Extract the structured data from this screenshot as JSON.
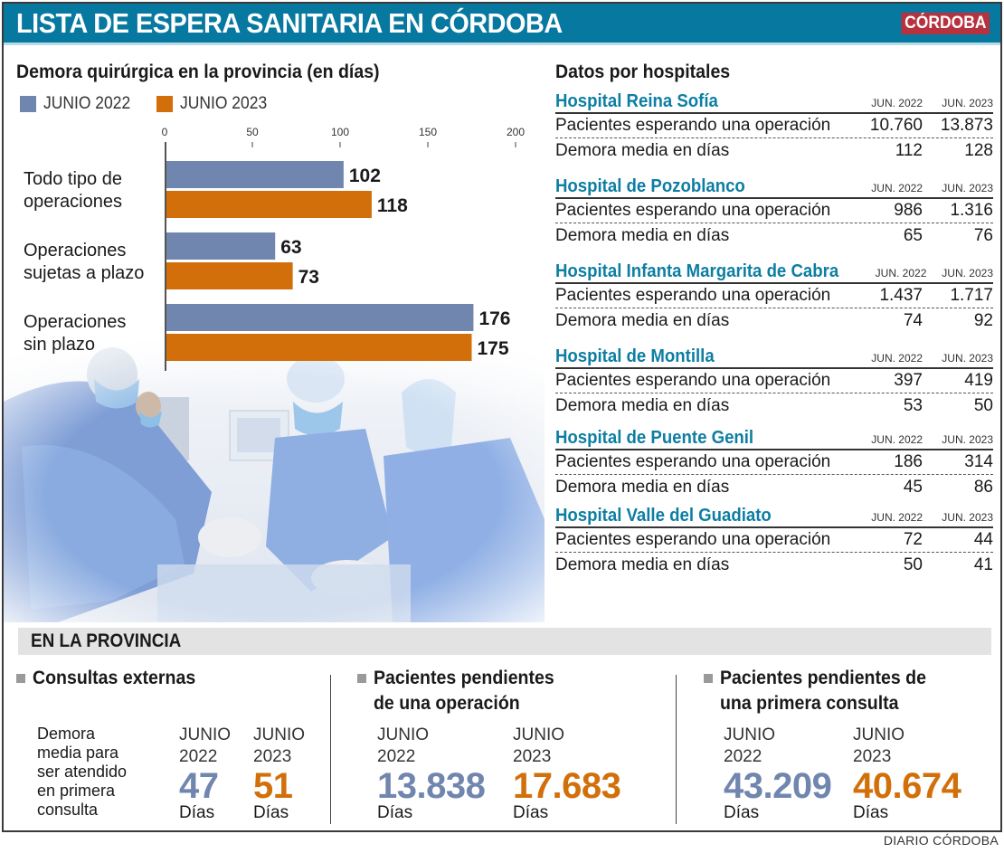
{
  "header": {
    "title": "LISTA DE ESPERA SANITARIA EN CÓRDOBA",
    "brand": "CÓRDOBA"
  },
  "colors": {
    "header_bg": "#07789f",
    "brand_bg": "#b7323f",
    "series_2022": "#7186ae",
    "series_2023": "#d26f0a",
    "hospital_name": "#0d7ea3"
  },
  "chart_data": {
    "type": "bar",
    "orientation": "horizontal",
    "title": "Demora quirúrgica en la provincia (en días)",
    "xlabel": "",
    "ylabel": "",
    "xlim": [
      0,
      200
    ],
    "ticks": [
      0,
      50,
      100,
      150,
      200
    ],
    "grid": false,
    "legend_position": "top-left",
    "categories": [
      [
        "Todo tipo de",
        "operaciones"
      ],
      [
        "Operaciones",
        "sujetas a plazo"
      ],
      [
        "Operaciones",
        "sin plazo"
      ]
    ],
    "series": [
      {
        "name": "JUNIO 2022",
        "color": "#7186ae",
        "values": [
          102,
          63,
          176
        ]
      },
      {
        "name": "JUNIO 2023",
        "color": "#d26f0a",
        "values": [
          118,
          73,
          175
        ]
      }
    ]
  },
  "hospitals": {
    "title": "Datos por hospitales",
    "col_2022": "JUN. 2022",
    "col_2023": "JUN. 2023",
    "row_patients": "Pacientes esperando una operación",
    "row_delay": "Demora media en días",
    "items": [
      {
        "name": "Hospital Reina Sofía",
        "patients": [
          "10.760",
          "13.873"
        ],
        "delay": [
          "112",
          "128"
        ]
      },
      {
        "name": "Hospital de Pozoblanco",
        "patients": [
          "986",
          "1.316"
        ],
        "delay": [
          "65",
          "76"
        ]
      },
      {
        "name": "Hospital Infanta Margarita de Cabra",
        "patients": [
          "1.437",
          "1.717"
        ],
        "delay": [
          "74",
          "92"
        ]
      },
      {
        "name": "Hospital de Montilla",
        "patients": [
          "397",
          "419"
        ],
        "delay": [
          "53",
          "50"
        ]
      },
      {
        "name": "Hospital de Puente Genil",
        "patients": [
          "186",
          "314"
        ],
        "delay": [
          "45",
          "86"
        ]
      },
      {
        "name": "Hospital Valle del Guadiato",
        "patients": [
          "72",
          "44"
        ],
        "delay": [
          "50",
          "41"
        ]
      }
    ]
  },
  "province": {
    "title": "EN LA PROVINCIA",
    "consultas": {
      "title": "Consultas externas",
      "description": [
        "Demora",
        "media para",
        "ser atendido",
        "en primera",
        "consulta"
      ],
      "label_2022": [
        "JUNIO",
        "2022"
      ],
      "label_2023": [
        "JUNIO",
        "2023"
      ],
      "value_2022": "47",
      "value_2023": "51",
      "unit": "Días"
    },
    "operacion": {
      "title": [
        "Pacientes pendientes",
        "de una operación"
      ],
      "label_2022": [
        "JUNIO",
        "2022"
      ],
      "label_2023": [
        "JUNIO",
        "2023"
      ],
      "value_2022": "13.838",
      "value_2023": "17.683",
      "unit": "Días"
    },
    "primera": {
      "title": [
        "Pacientes pendientes de",
        "una primera consulta"
      ],
      "label_2022": [
        "JUNIO",
        "2022"
      ],
      "label_2023": [
        "JUNIO",
        "2023"
      ],
      "value_2022": "43.209",
      "value_2023": "40.674",
      "unit": "Días"
    }
  },
  "credit": "DIARIO CÓRDOBA"
}
